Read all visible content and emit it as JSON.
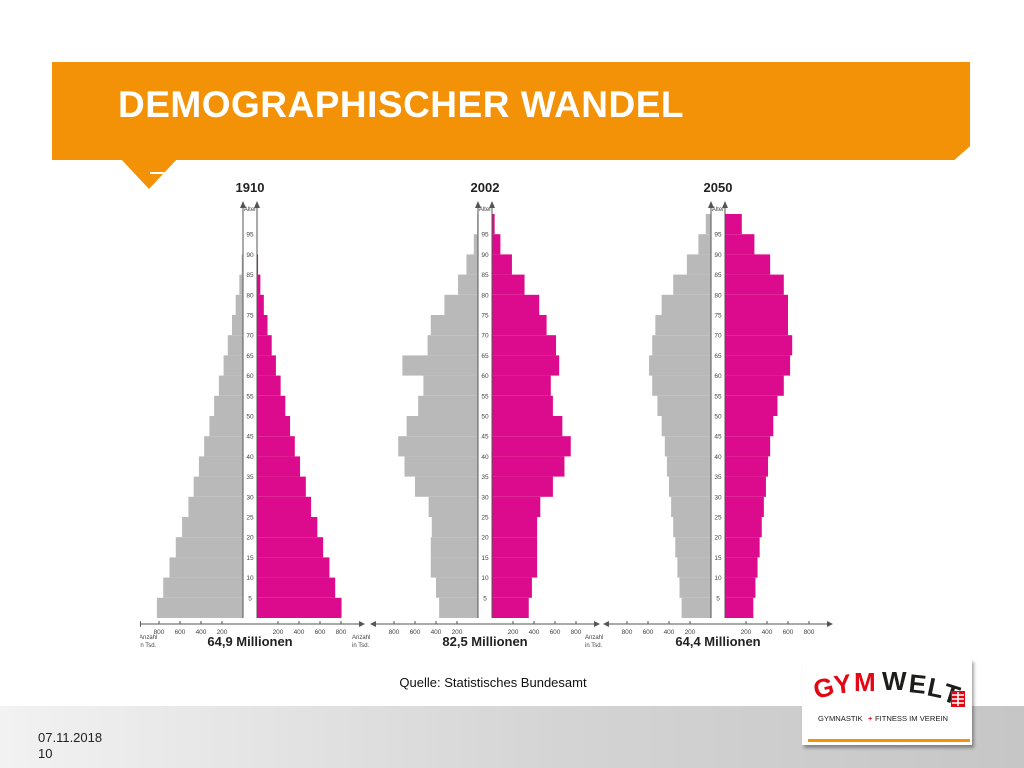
{
  "slide": {
    "title": "DEMOGRAPHISCHER WANDEL",
    "source": "Quelle: Statistisches Bundesamt",
    "date": "07.11.2018",
    "page": "10"
  },
  "logo": {
    "name": "GYMWELT",
    "tagline": "GYMNASTIK + FITNESS IM VEREIN"
  },
  "colors": {
    "accent": "#f39207",
    "male": "#b9b9b9",
    "female": "#dc0a8c"
  },
  "chart_data": [
    {
      "type": "population-pyramid",
      "title": "1910",
      "total_label": "64,9 Millionen",
      "axis_label_age": "Alter",
      "axis_label_count": "Anzahl in Tsd.",
      "x_ticks": [
        "800",
        "600",
        "400",
        "200",
        "200",
        "400",
        "600",
        "800"
      ],
      "age_ticks": [
        "95",
        "90",
        "85",
        "80",
        "75",
        "70",
        "65",
        "60",
        "55",
        "50",
        "45",
        "40",
        "35",
        "30",
        "25",
        "20",
        "15",
        "10",
        "5"
      ],
      "xlim": [
        0,
        900
      ],
      "ages": [
        0,
        5,
        10,
        15,
        20,
        25,
        30,
        35,
        40,
        45,
        50,
        55,
        60,
        65,
        70,
        75,
        80,
        85,
        90,
        95
      ],
      "series": [
        {
          "name": "",
          "values": [
            820,
            760,
            700,
            640,
            580,
            520,
            470,
            420,
            370,
            320,
            275,
            230,
            185,
            145,
            105,
            70,
            35,
            12,
            3,
            1
          ]
        },
        {
          "name": "",
          "values": [
            805,
            745,
            690,
            630,
            575,
            515,
            465,
            410,
            360,
            315,
            270,
            225,
            180,
            140,
            100,
            65,
            32,
            10,
            3,
            1
          ]
        }
      ]
    },
    {
      "type": "population-pyramid",
      "title": "2002",
      "total_label": "82,5 Millionen",
      "axis_label_age": "Alter",
      "axis_label_count": "Anzahl in Tsd.",
      "x_ticks": [
        "800",
        "600",
        "400",
        "200",
        "200",
        "400",
        "600",
        "800"
      ],
      "age_ticks": [
        "95",
        "90",
        "85",
        "80",
        "75",
        "70",
        "65",
        "60",
        "55",
        "50",
        "45",
        "40",
        "35",
        "30",
        "25",
        "20",
        "15",
        "10",
        "5"
      ],
      "xlim": [
        0,
        900
      ],
      "ages": [
        0,
        5,
        10,
        15,
        20,
        25,
        30,
        35,
        40,
        45,
        50,
        55,
        60,
        65,
        70,
        75,
        80,
        85,
        90,
        95
      ],
      "series": [
        {
          "name": "",
          "values": [
            370,
            400,
            450,
            450,
            440,
            470,
            600,
            700,
            760,
            680,
            570,
            520,
            720,
            480,
            450,
            320,
            190,
            110,
            40,
            8
          ]
        },
        {
          "name": "",
          "values": [
            350,
            380,
            430,
            430,
            430,
            460,
            580,
            690,
            750,
            670,
            580,
            560,
            640,
            610,
            520,
            450,
            310,
            190,
            80,
            25
          ]
        }
      ]
    },
    {
      "type": "population-pyramid",
      "title": "2050",
      "total_label": "64,4 Millionen",
      "axis_label_age": "Alter",
      "axis_label_count": "Anzahl in Tsd.",
      "x_ticks": [
        "800",
        "600",
        "400",
        "200",
        "200",
        "400",
        "600",
        "800"
      ],
      "age_ticks": [
        "95",
        "90",
        "85",
        "80",
        "75",
        "70",
        "65",
        "60",
        "55",
        "50",
        "45",
        "40",
        "35",
        "30",
        "25",
        "20",
        "15",
        "10",
        "5"
      ],
      "xlim": [
        0,
        900
      ],
      "ages": [
        0,
        5,
        10,
        15,
        20,
        25,
        30,
        35,
        40,
        45,
        50,
        55,
        60,
        65,
        70,
        75,
        80,
        85,
        90,
        95
      ],
      "series": [
        {
          "name": "",
          "values": [
            280,
            300,
            320,
            340,
            360,
            380,
            400,
            420,
            440,
            470,
            510,
            560,
            590,
            560,
            530,
            470,
            360,
            230,
            120,
            50
          ]
        },
        {
          "name": "",
          "values": [
            270,
            290,
            310,
            330,
            350,
            370,
            390,
            410,
            430,
            460,
            500,
            560,
            620,
            640,
            600,
            600,
            560,
            430,
            280,
            160
          ]
        }
      ]
    }
  ]
}
